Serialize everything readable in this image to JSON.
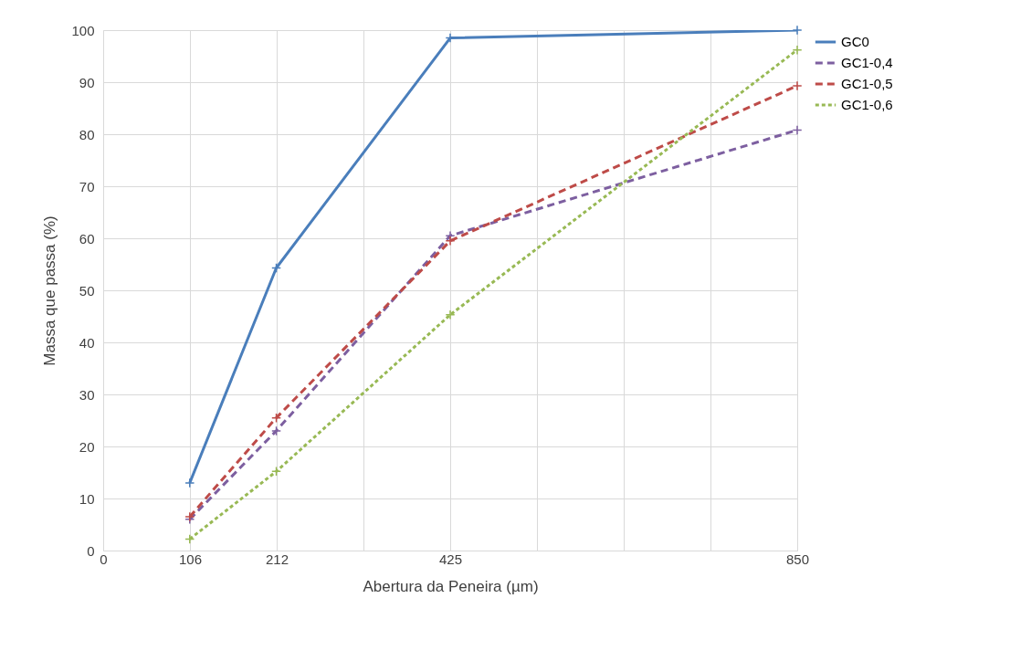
{
  "chart_data": {
    "type": "line",
    "xlabel": "Abertura da Peneira (µm)",
    "ylabel": "Massa que passa (%)",
    "x": [
      106,
      212,
      425,
      850
    ],
    "xlim": [
      0,
      850
    ],
    "xticks": [
      0,
      {
        "value": 106.25,
        "label": "106"
      },
      {
        "value": 212.5,
        "label": "212"
      },
      {
        "value": 318.75,
        "label": null
      },
      {
        "value": 425,
        "label": "425"
      },
      {
        "value": 531.25,
        "label": null
      },
      {
        "value": 637.5,
        "label": null
      },
      {
        "value": 743.75,
        "label": null
      },
      {
        "value": 850,
        "label": "850"
      }
    ],
    "ylim": [
      0,
      100
    ],
    "yticks": [
      0,
      10,
      20,
      30,
      40,
      50,
      60,
      70,
      80,
      90,
      100
    ],
    "grid": true,
    "legend": "right",
    "marker": "cross",
    "series": [
      {
        "name": "GC0",
        "color": "#4a7ebb",
        "line_style": "solid",
        "values": [
          13,
          54.3,
          98.5,
          100
        ]
      },
      {
        "name": "GC1-0,4",
        "color": "#7d5fa0",
        "line_style": "dashed",
        "values": [
          6,
          23,
          60.5,
          80.8
        ]
      },
      {
        "name": "GC1-0,5",
        "color": "#be4b48",
        "line_style": "dashed",
        "values": [
          6.5,
          25.5,
          59.5,
          89.3
        ]
      },
      {
        "name": "GC1-0,6",
        "color": "#98b954",
        "line_style": "dotted",
        "values": [
          2.2,
          15.2,
          45.3,
          96.2
        ]
      }
    ]
  }
}
